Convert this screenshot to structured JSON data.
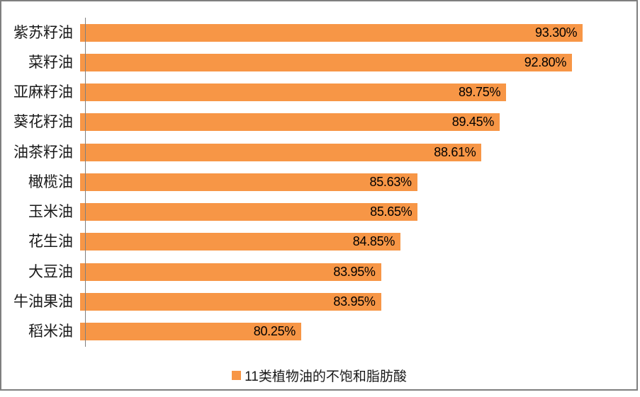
{
  "chart_data": {
    "type": "bar",
    "orientation": "horizontal",
    "title": "",
    "xlabel": "",
    "ylabel": "",
    "xlim": [
      70,
      95
    ],
    "grid": false,
    "legend_position": "bottom",
    "bar_color": "#F79646",
    "categories": [
      "紫苏籽油",
      "菜籽油",
      "亚麻籽油",
      "葵花籽油",
      "油茶籽油",
      "橄榄油",
      "玉米油",
      "花生油",
      "大豆油",
      "牛油果油",
      "稻米油"
    ],
    "values": [
      93.3,
      92.8,
      89.75,
      89.45,
      88.61,
      85.63,
      85.65,
      84.85,
      83.95,
      83.95,
      80.25
    ],
    "value_labels": [
      "93.30%",
      "92.80%",
      "89.75%",
      "89.45%",
      "88.61%",
      "85.63%",
      "85.65%",
      "84.85%",
      "83.95%",
      "83.95%",
      "80.25%"
    ],
    "legend": "11类植物油的不饱和脂肪酸"
  },
  "colors": {
    "bar": "#F79646",
    "frame_border": "#7f7f7f",
    "axis_line": "#808080",
    "text": "#1a1a1a"
  }
}
